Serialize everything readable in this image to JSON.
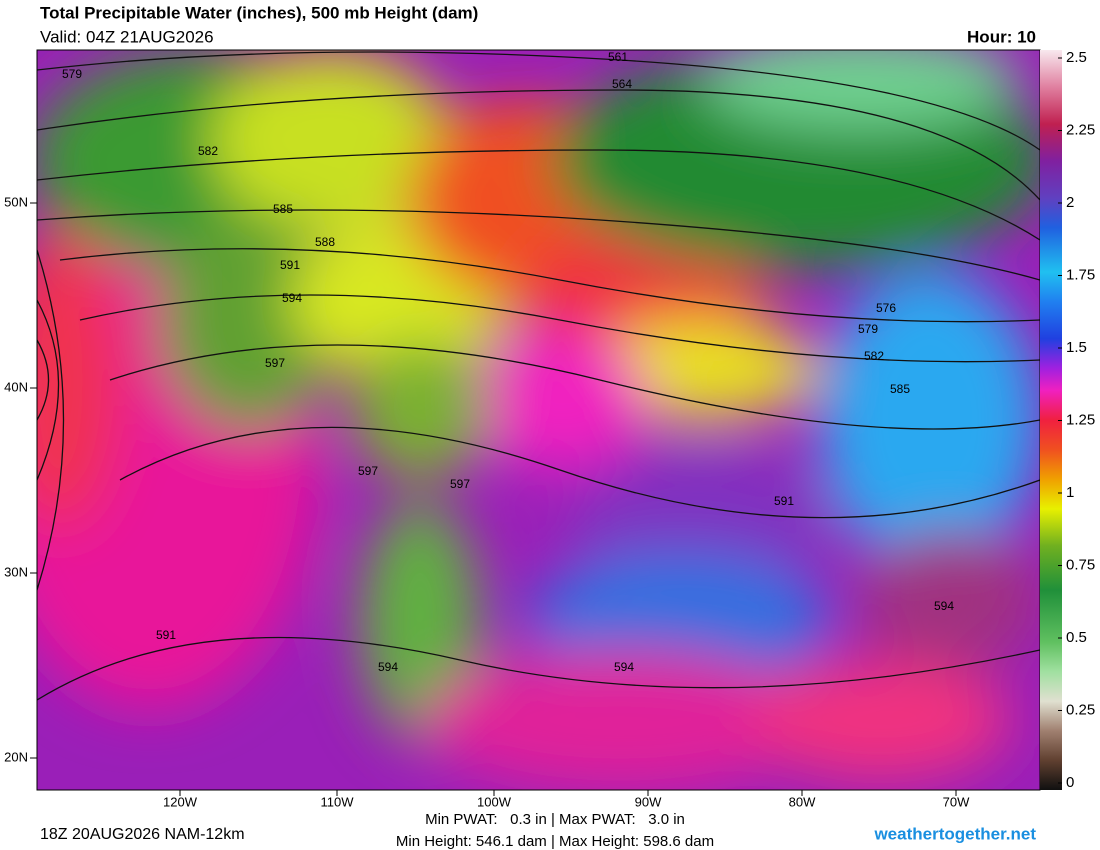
{
  "header": {
    "title": "Total Precipitable Water (inches), 500 mb Height (dam)",
    "valid": "Valid: 04Z 21AUG2026",
    "hour": "Hour: 10"
  },
  "map": {
    "lat_labels": [
      "50N",
      "40N",
      "30N",
      "20N"
    ],
    "lon_labels": [
      "120W",
      "110W",
      "100W",
      "90W",
      "80W",
      "70W"
    ],
    "contour_labels": [
      "579",
      "561",
      "564",
      "582",
      "585",
      "588",
      "591",
      "594",
      "597",
      "576",
      "579",
      "582",
      "585",
      "597",
      "597",
      "591",
      "594",
      "591",
      "594",
      "594"
    ]
  },
  "colorbar": {
    "range": [
      0,
      2.5
    ],
    "ticks": [
      0,
      0.25,
      0.5,
      0.75,
      1,
      1.25,
      1.5,
      1.75,
      2,
      2.25,
      2.5
    ]
  },
  "footer": {
    "run": "18Z 20AUG2026 NAM-12km",
    "pwat": "Min PWAT:   0.3 in | Max PWAT:   3.0 in",
    "height": "Min Height: 546.1 dam | Max Height: 598.6 dam",
    "site": "weathertogether.net"
  }
}
